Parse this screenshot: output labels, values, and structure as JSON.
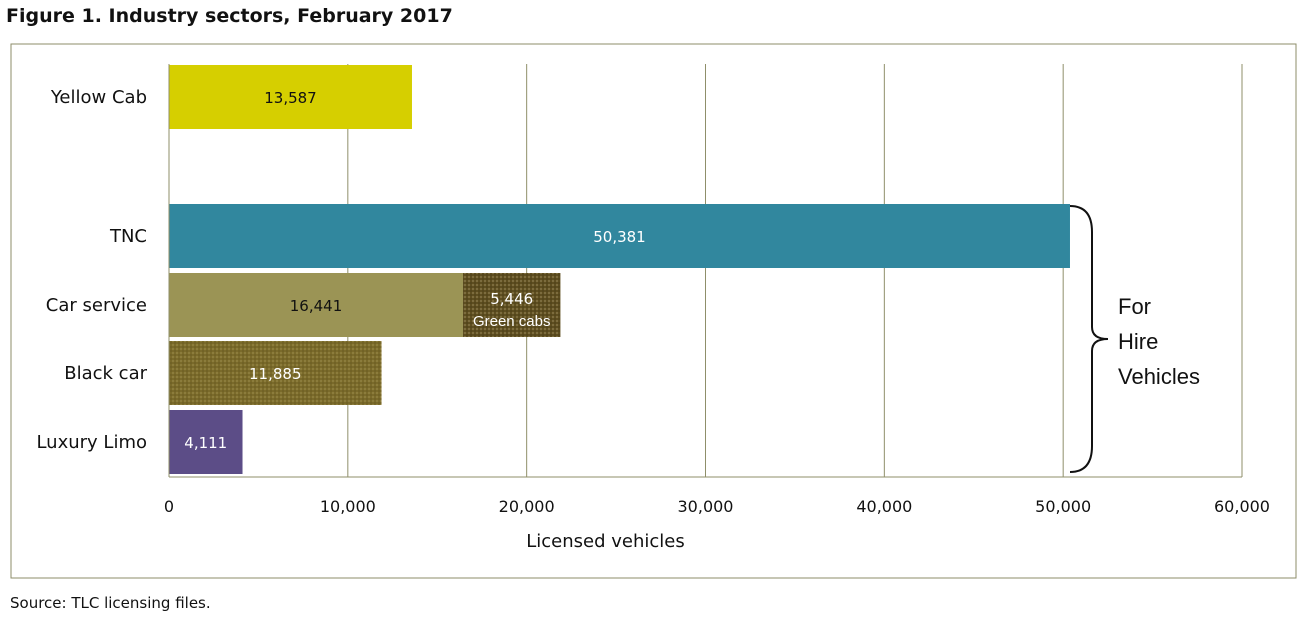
{
  "title": "Figure 1. Industry sectors, February 2017",
  "source": "Source: TLC licensing files.",
  "chart_data": {
    "type": "bar",
    "orientation": "horizontal",
    "stacked": true,
    "categories": [
      "Yellow Cab",
      "TNC",
      "Car service",
      "Black car",
      "Luxury Limo"
    ],
    "series": [
      {
        "values": [
          13587,
          50381,
          16441,
          11885,
          4111
        ],
        "labels": [
          "13,587",
          "50,381",
          "16,441",
          "11,885",
          "4,111"
        ],
        "colors": [
          "#d6cf00",
          "#31879e",
          "#9b9455",
          "#7a6a2a",
          "#5c4d87"
        ]
      },
      {
        "name": "Green cabs",
        "values": [
          null,
          null,
          5446,
          null,
          null
        ],
        "labels": [
          "",
          "",
          "5,446",
          "",
          ""
        ],
        "colors": [
          "",
          "",
          "#5e4e20",
          "",
          ""
        ]
      }
    ],
    "xlabel": "Licensed vehicles",
    "ylabel": "",
    "xlim": [
      0,
      60000
    ],
    "xticks": [
      0,
      10000,
      20000,
      30000,
      40000,
      50000,
      60000
    ],
    "xtick_labels": [
      "0",
      "10,000",
      "20,000",
      "30,000",
      "40,000",
      "50,000",
      "60,000"
    ],
    "grid": "vertical",
    "annotation": {
      "type": "brace",
      "label_lines": [
        "For",
        "Hire",
        "Vehicles"
      ],
      "spans_categories": [
        "TNC",
        "Car service",
        "Black car",
        "Luxury Limo"
      ]
    }
  }
}
